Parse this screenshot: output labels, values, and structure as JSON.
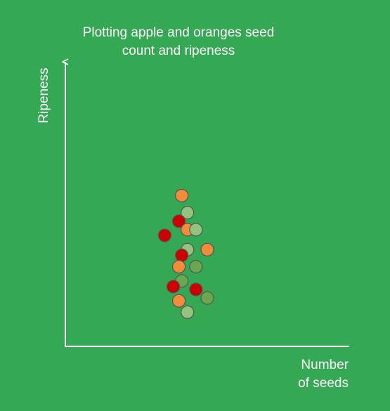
{
  "background": "#35a853",
  "chart_data": {
    "type": "scatter",
    "title_lines": [
      "Plotting apple and oranges seed",
      "count and ripeness"
    ],
    "ylabel": "Ripeness",
    "xlabel_lines": [
      "Number",
      "of seeds"
    ],
    "xlim": [
      0,
      100
    ],
    "ylim": [
      0,
      100
    ],
    "grid": false,
    "axis_color": "#ffffff",
    "marker_stroke": "#555555",
    "points": [
      {
        "x": 41,
        "y": 53,
        "color": "#f28c38"
      },
      {
        "x": 43,
        "y": 47,
        "color": "#93c47d"
      },
      {
        "x": 40,
        "y": 44,
        "color": "#cc0000"
      },
      {
        "x": 43,
        "y": 41,
        "color": "#f28c38"
      },
      {
        "x": 46,
        "y": 41,
        "color": "#93c47d"
      },
      {
        "x": 35,
        "y": 39,
        "color": "#cc0000"
      },
      {
        "x": 43,
        "y": 34,
        "color": "#93c47d"
      },
      {
        "x": 50,
        "y": 34,
        "color": "#f28c38"
      },
      {
        "x": 41,
        "y": 32,
        "color": "#cc0000"
      },
      {
        "x": 40,
        "y": 28,
        "color": "#f28c38"
      },
      {
        "x": 46,
        "y": 28,
        "color": "#6aa84f"
      },
      {
        "x": 41,
        "y": 23,
        "color": "#6aa84f"
      },
      {
        "x": 38,
        "y": 21,
        "color": "#cc0000"
      },
      {
        "x": 46,
        "y": 20,
        "color": "#cc0000"
      },
      {
        "x": 40,
        "y": 16,
        "color": "#f28c38"
      },
      {
        "x": 50,
        "y": 17,
        "color": "#6aa84f"
      },
      {
        "x": 43,
        "y": 12,
        "color": "#93c47d"
      }
    ]
  }
}
